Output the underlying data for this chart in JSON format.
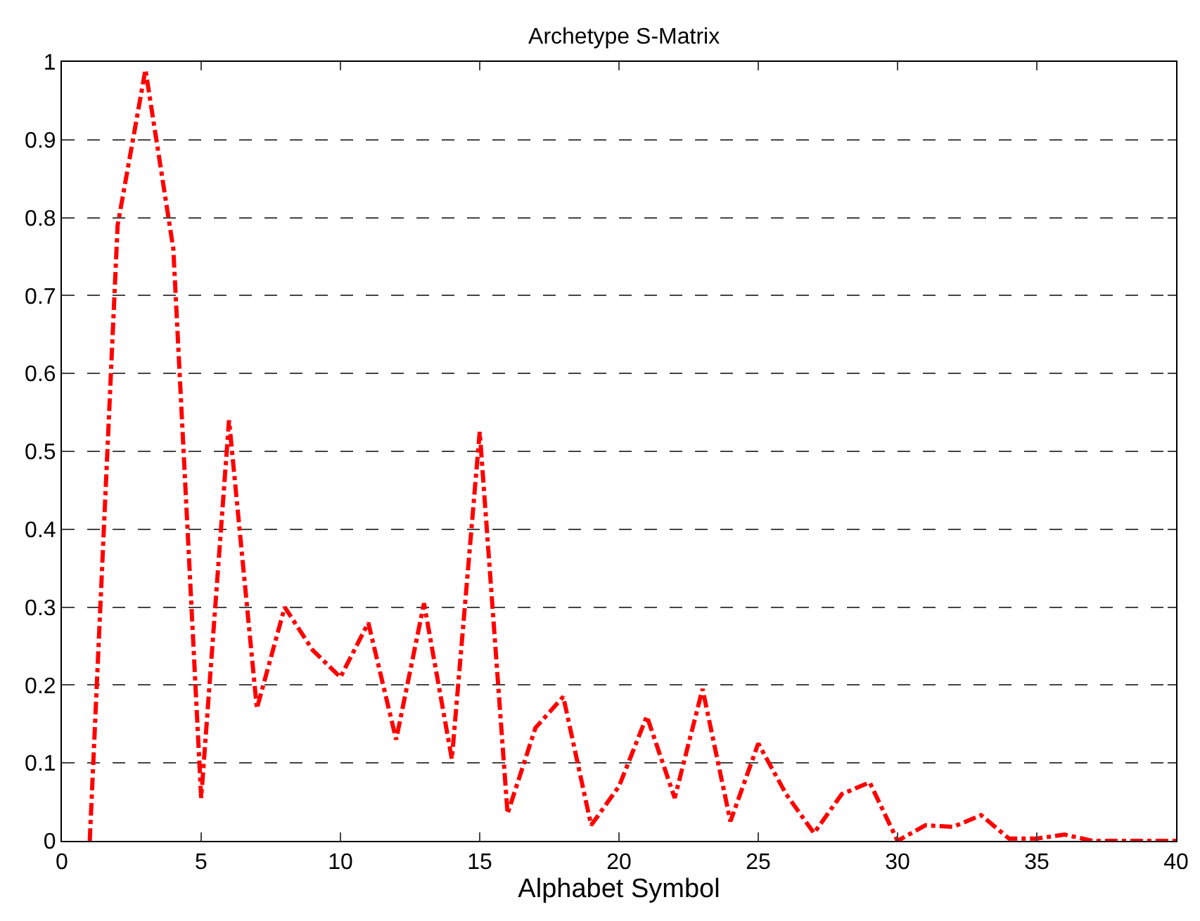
{
  "chart_data": {
    "type": "line",
    "title": "Archetype S-Matrix",
    "xlabel": "Alphabet Symbol",
    "x": [
      1,
      2,
      3,
      4,
      5,
      6,
      7,
      8,
      9,
      10,
      11,
      12,
      13,
      14,
      15,
      16,
      17,
      18,
      19,
      20,
      21,
      22,
      23,
      24,
      25,
      26,
      27,
      28,
      29,
      30,
      31,
      32,
      33,
      34,
      35,
      36,
      37,
      38,
      39,
      40
    ],
    "series": [
      {
        "color": "#ff0000",
        "values": [
          0,
          0.79,
          0.99,
          0.76,
          0.055,
          0.54,
          0.17,
          0.3,
          0.245,
          0.21,
          0.28,
          0.13,
          0.305,
          0.105,
          0.525,
          0.035,
          0.145,
          0.185,
          0.02,
          0.07,
          0.16,
          0.055,
          0.195,
          0.025,
          0.125,
          0.06,
          0.01,
          0.06,
          0.075,
          0,
          0.02,
          0.018,
          0.033,
          0.003,
          0.003,
          0.008,
          0,
          0,
          0,
          0
        ]
      }
    ],
    "xlim": [
      0,
      40
    ],
    "xticks": [
      0,
      5,
      10,
      15,
      20,
      25,
      30,
      35,
      40
    ],
    "ylim": [
      0,
      1
    ],
    "yticks": [
      0,
      0.1,
      0.2,
      0.3,
      0.4,
      0.5,
      0.6,
      0.7,
      0.8,
      0.9,
      1
    ],
    "grid": "y",
    "marker": "none",
    "line_style": "dashdot"
  }
}
